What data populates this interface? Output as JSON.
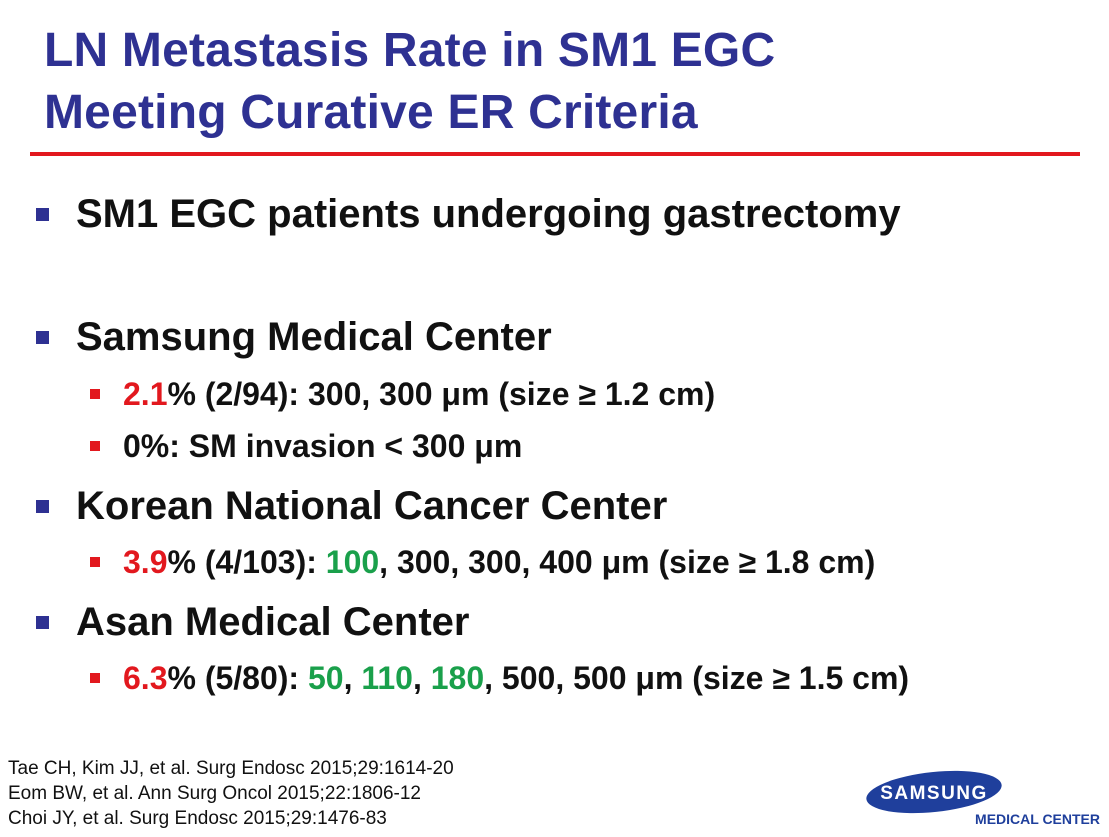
{
  "slide": {
    "title_line1": "LN Metastasis Rate in SM1 EGC",
    "title_line2": "Meeting Curative ER Criteria",
    "bullets": [
      {
        "text": "SM1 EGC patients undergoing gastrectomy"
      },
      {
        "text": "Samsung Medical Center"
      },
      {
        "text": "Korean National Cancer Center"
      },
      {
        "text": "Asan Medical Center"
      }
    ],
    "sub": {
      "smc1": {
        "rate": "2.1",
        "rest": "% (2/94): 300, 300 μm (size ≥ 1.2 cm)"
      },
      "smc2": {
        "text": "0%: SM invasion < 300 μm"
      },
      "kncc1": {
        "rate": "3.9",
        "mid": "% (4/103): ",
        "g1": "100",
        "rest": ", 300, 300, 400 μm (size ≥ 1.8 cm)"
      },
      "amc1": {
        "rate": "6.3",
        "mid": "% (5/80): ",
        "g1": "50",
        "s1": ", ",
        "g2": "110",
        "s2": ", ",
        "g3": "180",
        "rest": ", 500, 500 μm (size ≥ 1.5 cm)"
      }
    },
    "references": [
      "Tae CH, Kim JJ, et al. Surg Endosc 2015;29:1614-20",
      "Eom BW, et al. Ann Surg Oncol 2015;22:1806-12",
      "Choi JY, et al. Surg Endosc 2015;29:1476-83"
    ],
    "logo": {
      "brand": "SAMSUNG",
      "sub": "MEDICAL CENTER"
    },
    "colors": {
      "title": "#2e3192",
      "accent_red": "#e2181e",
      "highlight_green": "#1aa04b"
    }
  }
}
